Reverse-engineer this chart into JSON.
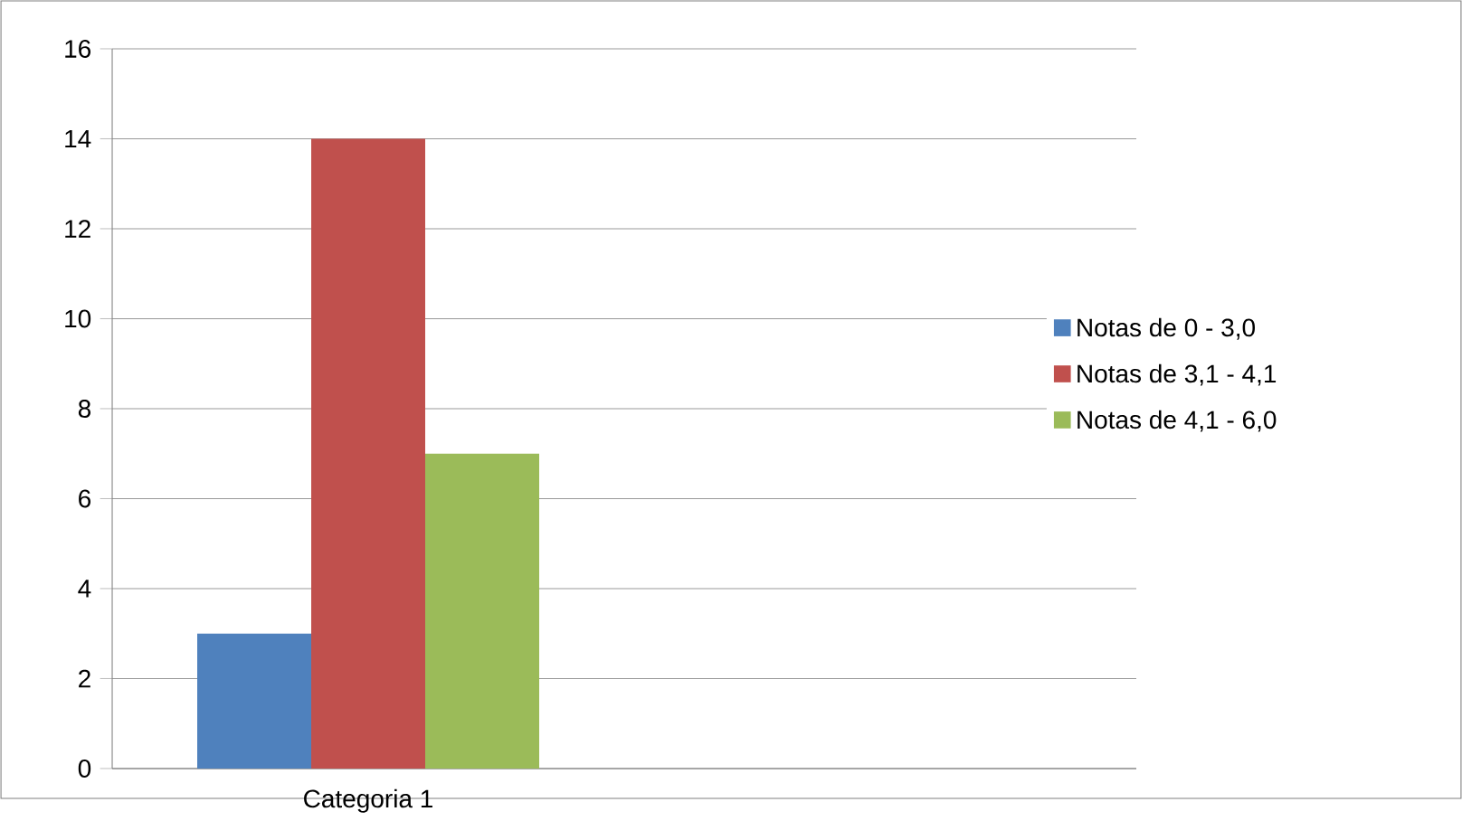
{
  "chart_data": {
    "type": "bar",
    "categories": [
      "Categoria 1",
      null
    ],
    "series": [
      {
        "name": "Notas de 0 - 3,0",
        "color": "#4f81bd",
        "values": [
          3,
          null
        ]
      },
      {
        "name": "Notas de 3,1 - 4,1",
        "color": "#c0504d",
        "values": [
          14,
          null
        ]
      },
      {
        "name": "Notas de 4,1 - 6,0",
        "color": "#9bbb59",
        "values": [
          7,
          null
        ]
      }
    ],
    "ylim": [
      0,
      16
    ],
    "yticks": [
      0,
      2,
      4,
      6,
      8,
      10,
      12,
      14,
      16
    ],
    "grid": "y",
    "legend": "right"
  }
}
